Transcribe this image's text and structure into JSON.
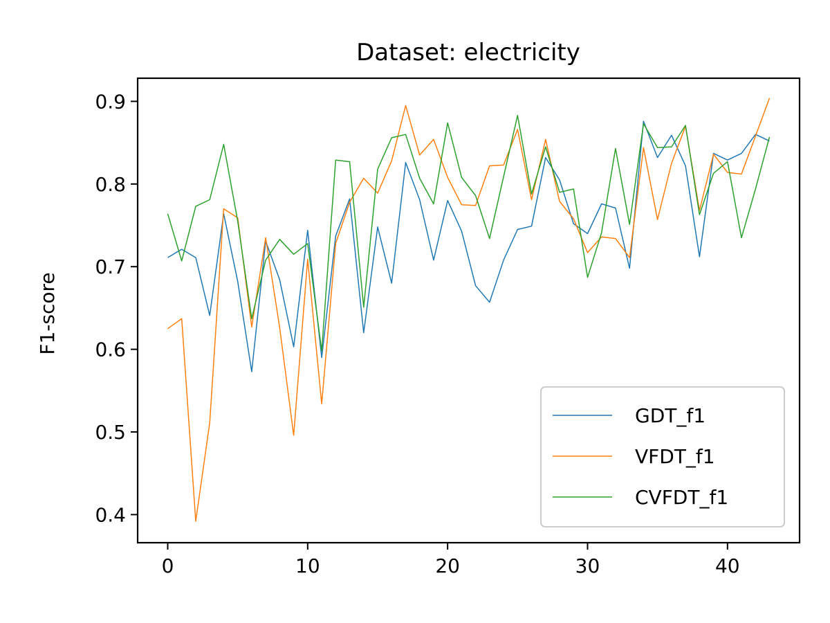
{
  "chart_data": {
    "type": "line",
    "title": "Dataset: electricity",
    "xlabel": "",
    "ylabel": "F1-score",
    "xlim": [
      -2.15,
      45.15
    ],
    "ylim": [
      0.366,
      0.928
    ],
    "x_ticks": [
      0,
      10,
      20,
      30,
      40
    ],
    "y_ticks": [
      0.4,
      0.5,
      0.6,
      0.7,
      0.8,
      0.9
    ],
    "y_tick_labels": [
      "0.4",
      "0.5",
      "0.6",
      "0.7",
      "0.8",
      "0.9"
    ],
    "grid": false,
    "legend_position": "bottom-right",
    "x": [
      0,
      1,
      2,
      3,
      4,
      5,
      6,
      7,
      8,
      9,
      10,
      11,
      12,
      13,
      14,
      15,
      16,
      17,
      18,
      19,
      20,
      21,
      22,
      23,
      24,
      25,
      26,
      27,
      28,
      29,
      30,
      31,
      32,
      33,
      34,
      35,
      36,
      37,
      38,
      39,
      40,
      41,
      42,
      43
    ],
    "series": [
      {
        "name": "GDT_f1",
        "color": "#1f77b4",
        "values": [
          0.711,
          0.721,
          0.711,
          0.641,
          0.764,
          0.682,
          0.573,
          0.731,
          0.684,
          0.603,
          0.744,
          0.59,
          0.737,
          0.782,
          0.62,
          0.748,
          0.68,
          0.826,
          0.781,
          0.708,
          0.78,
          0.743,
          0.677,
          0.657,
          0.708,
          0.745,
          0.749,
          0.832,
          0.805,
          0.752,
          0.74,
          0.776,
          0.771,
          0.698,
          0.876,
          0.832,
          0.859,
          0.822,
          0.712,
          0.837,
          0.829,
          0.837,
          0.86,
          0.852
        ]
      },
      {
        "name": "VFDT_f1",
        "color": "#ff7f0e",
        "values": [
          0.625,
          0.637,
          0.392,
          0.511,
          0.77,
          0.759,
          0.627,
          0.735,
          0.626,
          0.496,
          0.709,
          0.534,
          0.728,
          0.778,
          0.807,
          0.789,
          0.828,
          0.895,
          0.835,
          0.854,
          0.808,
          0.775,
          0.774,
          0.822,
          0.823,
          0.866,
          0.781,
          0.854,
          0.779,
          0.758,
          0.717,
          0.736,
          0.734,
          0.711,
          0.844,
          0.757,
          0.825,
          0.87,
          0.768,
          0.836,
          0.814,
          0.812,
          0.858,
          0.904
        ]
      },
      {
        "name": "CVFDT_f1",
        "color": "#2ca02c",
        "values": [
          0.764,
          0.707,
          0.773,
          0.781,
          0.848,
          0.755,
          0.637,
          0.708,
          0.733,
          0.715,
          0.728,
          0.598,
          0.829,
          0.827,
          0.651,
          0.818,
          0.856,
          0.86,
          0.807,
          0.776,
          0.874,
          0.808,
          0.786,
          0.734,
          0.809,
          0.883,
          0.788,
          0.845,
          0.79,
          0.794,
          0.687,
          0.741,
          0.843,
          0.751,
          0.873,
          0.844,
          0.845,
          0.871,
          0.763,
          0.813,
          0.827,
          0.735,
          0.794,
          0.857
        ]
      }
    ]
  }
}
